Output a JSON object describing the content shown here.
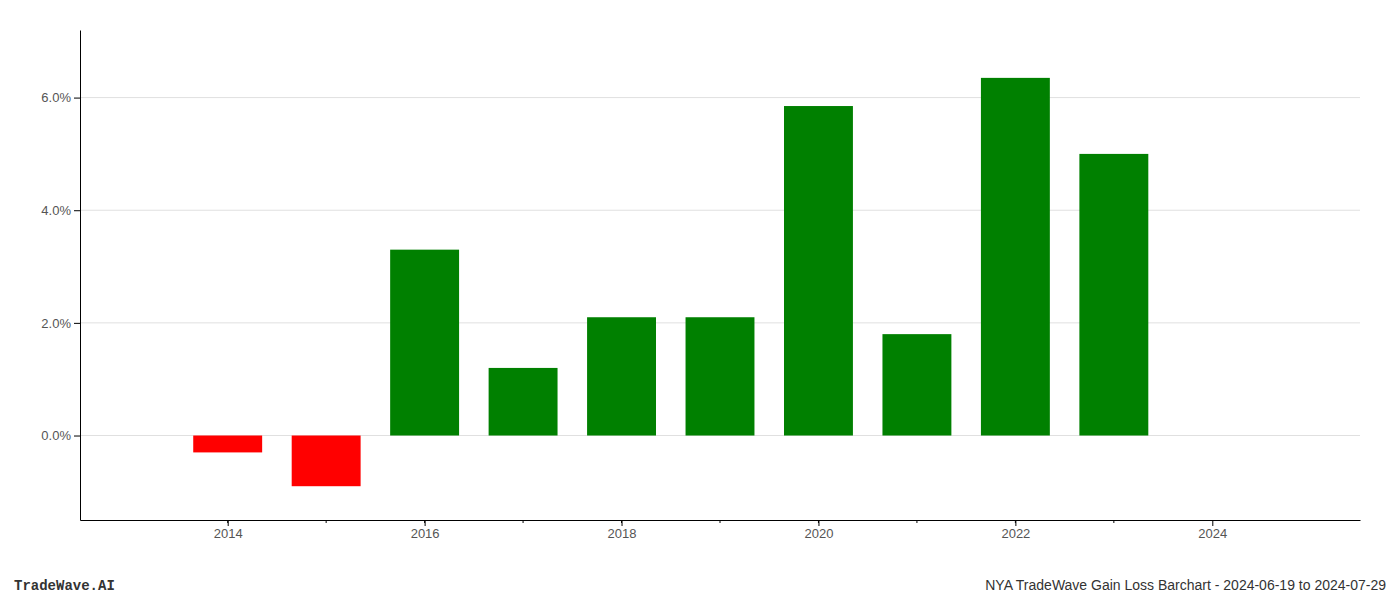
{
  "chart_data": {
    "type": "bar",
    "x": [
      2014,
      2015,
      2016,
      2017,
      2018,
      2019,
      2020,
      2021,
      2022,
      2023
    ],
    "values": [
      -0.3,
      -0.9,
      3.3,
      1.2,
      2.1,
      2.1,
      5.85,
      1.8,
      6.35,
      5.0
    ],
    "colors": [
      "#ff0000",
      "#ff0000",
      "#008000",
      "#008000",
      "#008000",
      "#008000",
      "#008000",
      "#008000",
      "#008000",
      "#008000"
    ],
    "xlim": [
      2012.5,
      2025.5
    ],
    "xticks": [
      2014,
      2016,
      2018,
      2020,
      2022,
      2024
    ],
    "ylim": [
      -1.5,
      7.2
    ],
    "yticks": [
      {
        "value": 0,
        "label": "0.0%"
      },
      {
        "value": 2,
        "label": "2.0%"
      },
      {
        "value": 4,
        "label": "4.0%"
      },
      {
        "value": 6,
        "label": "6.0%"
      }
    ],
    "grid": true,
    "annotations": [
      "TradeWave.AI",
      "NYA TradeWave Gain Loss Barchart - 2024-06-19 to 2024-07-29"
    ]
  }
}
